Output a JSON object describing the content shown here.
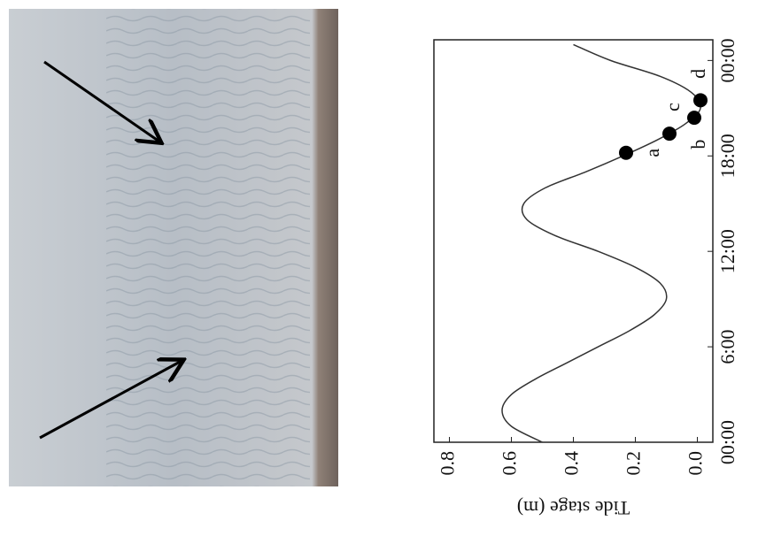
{
  "chart_data": {
    "type": "line",
    "ylabel": "Tide stage (m)",
    "xlim": [
      0,
      25.3
    ],
    "ylim": [
      -0.05,
      0.85
    ],
    "xticks": [
      {
        "value": 0,
        "label": "00:00"
      },
      {
        "value": 6,
        "label": "6:00"
      },
      {
        "value": 12,
        "label": "12:00"
      },
      {
        "value": 18,
        "label": "18:00"
      },
      {
        "value": 24,
        "label": "00:00"
      }
    ],
    "yticks": [
      {
        "value": 0.8,
        "label": "0.8"
      },
      {
        "value": 0.6,
        "label": "0.6"
      },
      {
        "value": 0.4,
        "label": "0.4"
      },
      {
        "value": 0.2,
        "label": "0.2"
      },
      {
        "value": 0,
        "label": "0.0"
      }
    ],
    "series": [
      {
        "color": "#333333",
        "x": [
          0,
          1,
          2,
          3,
          4,
          5,
          6,
          7,
          8,
          9,
          10,
          11,
          12,
          13,
          14,
          15,
          16,
          17,
          18,
          19,
          20,
          21,
          22,
          23,
          24,
          25
        ],
        "values": [
          0.5,
          0.6,
          0.63,
          0.6,
          0.52,
          0.42,
          0.32,
          0.22,
          0.14,
          0.1,
          0.12,
          0.2,
          0.32,
          0.46,
          0.55,
          0.56,
          0.49,
          0.36,
          0.24,
          0.13,
          0.04,
          -0.01,
          0.02,
          0.12,
          0.28,
          0.4
        ]
      }
    ],
    "points": [
      {
        "label": "a",
        "x": 18.2,
        "y": 0.23
      },
      {
        "label": "b",
        "x": 19.4,
        "y": 0.09
      },
      {
        "label": "c",
        "x": 20.4,
        "y": 0.01
      },
      {
        "label": "d",
        "x": 21.5,
        "y": -0.01
      }
    ]
  }
}
